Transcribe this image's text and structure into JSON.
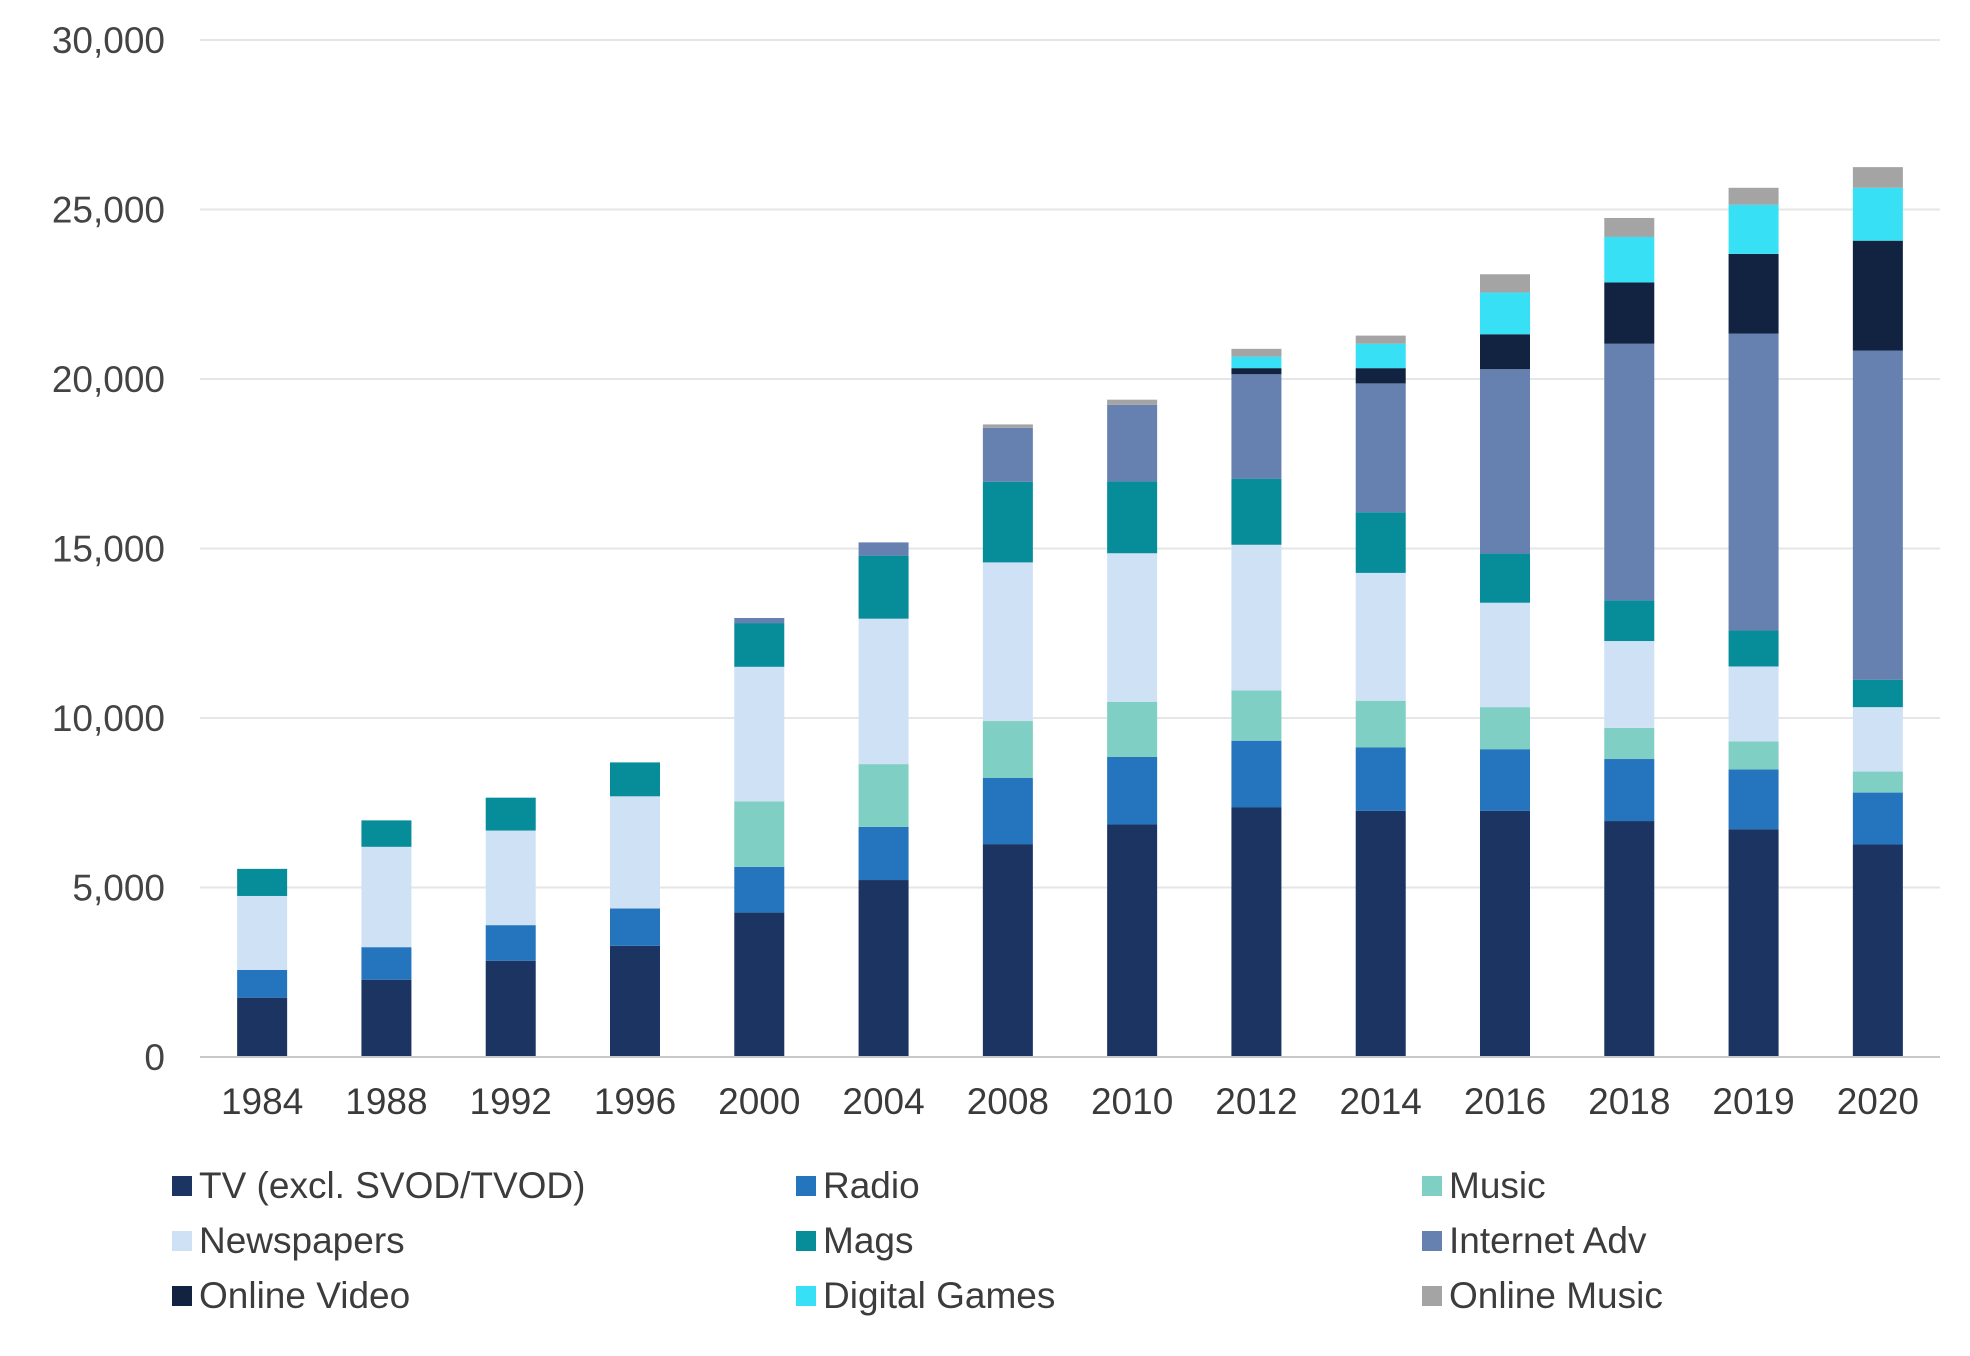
{
  "chart_data": {
    "type": "bar",
    "stacked": true,
    "categories": [
      "1984",
      "1988",
      "1992",
      "1996",
      "2000",
      "2004",
      "2008",
      "2010",
      "2012",
      "2014",
      "2016",
      "2018",
      "2019",
      "2020"
    ],
    "ylim": [
      0,
      30000
    ],
    "yticks": [
      0,
      5000,
      10000,
      15000,
      20000,
      25000,
      30000
    ],
    "ytick_labels": [
      "0",
      "5,000",
      "10,000",
      "15,000",
      "20,000",
      "25,000",
      "30,000"
    ],
    "grid": true,
    "legend_position": "bottom",
    "series": [
      {
        "name": "TV (excl. SVOD/TVOD)",
        "color": "#1c3461",
        "values": [
          1750,
          2280,
          2840,
          3280,
          4260,
          5220,
          6280,
          6860,
          7360,
          7260,
          7260,
          6960,
          6720,
          6270
        ]
      },
      {
        "name": "Radio",
        "color": "#2574be",
        "values": [
          820,
          960,
          1050,
          1100,
          1350,
          1570,
          1950,
          1990,
          1970,
          1870,
          1820,
          1830,
          1760,
          1530
        ]
      },
      {
        "name": "Music",
        "color": "#7fcfc4",
        "values": [
          0,
          0,
          0,
          0,
          1930,
          1850,
          1680,
          1630,
          1480,
          1380,
          1240,
          920,
          830,
          620
        ]
      },
      {
        "name": "Newspapers",
        "color": "#cfe2f5",
        "values": [
          2180,
          2960,
          2790,
          3310,
          3970,
          4290,
          4680,
          4380,
          4300,
          3770,
          3080,
          2560,
          2210,
          1900
        ]
      },
      {
        "name": "Mags",
        "color": "#078c9a",
        "values": [
          800,
          780,
          970,
          1000,
          1290,
          1860,
          2380,
          2120,
          1950,
          1790,
          1450,
          1200,
          1060,
          810
        ]
      },
      {
        "name": "Internet Adv",
        "color": "#6680b0",
        "values": [
          0,
          0,
          0,
          0,
          150,
          390,
          1590,
          2260,
          3080,
          3800,
          5440,
          7570,
          8760,
          9710
        ]
      },
      {
        "name": "Online Video",
        "color": "#112340",
        "values": [
          0,
          0,
          0,
          0,
          0,
          0,
          0,
          0,
          180,
          450,
          1030,
          1810,
          2350,
          3240
        ]
      },
      {
        "name": "Digital Games",
        "color": "#38e0f5",
        "values": [
          0,
          0,
          0,
          0,
          0,
          0,
          0,
          0,
          340,
          720,
          1230,
          1340,
          1450,
          1560
        ]
      },
      {
        "name": "Online Music",
        "color": "#a4a4a4",
        "values": [
          0,
          0,
          0,
          0,
          0,
          0,
          100,
          150,
          230,
          240,
          540,
          560,
          500,
          610
        ]
      }
    ]
  }
}
